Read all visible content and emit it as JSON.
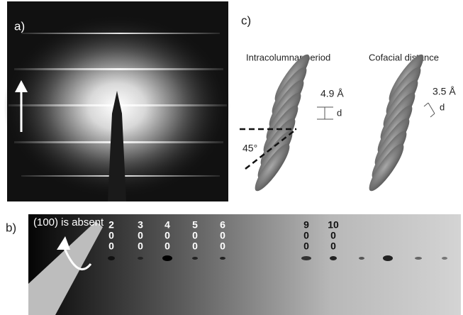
{
  "panel_a": {
    "label": "a)"
  },
  "panel_b": {
    "label": "b)",
    "note": "(100) is absent",
    "indices": [
      [
        "2",
        "0",
        "0"
      ],
      [
        "3",
        "0",
        "0"
      ],
      [
        "4",
        "0",
        "0"
      ],
      [
        "5",
        "0",
        "0"
      ],
      [
        "6",
        "0",
        "0"
      ],
      [
        "9",
        "0",
        "0"
      ],
      [
        "10",
        "0",
        "0"
      ]
    ]
  },
  "panel_c": {
    "label": "c)",
    "left": {
      "title": "Intracolumnar period",
      "distance": "4.9 Å",
      "symbol": "d",
      "angle": "45°"
    },
    "right": {
      "title": "Cofacial distance",
      "distance": "3.5 Å",
      "symbol": "d"
    }
  }
}
